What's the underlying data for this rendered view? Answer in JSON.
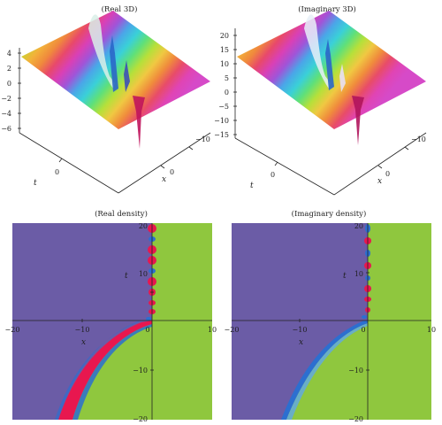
{
  "panels": {
    "real3d": {
      "title": "(Real 3D)",
      "z_ticks": [
        "4",
        "2",
        "0",
        "−2",
        "−4",
        "−6"
      ],
      "t_label": "t",
      "x_label": "x",
      "t_ticks": [
        "0"
      ],
      "x_ticks": [
        "0",
        "−10"
      ]
    },
    "imag3d": {
      "title": "(Imaginary 3D)",
      "z_ticks": [
        "20",
        "15",
        "10",
        "5",
        "0",
        "−5",
        "−10",
        "−15"
      ],
      "t_label": "t",
      "x_label": "x",
      "t_ticks": [
        "0"
      ],
      "x_ticks": [
        "0",
        "−10"
      ]
    },
    "realdens": {
      "title": "(Real density)",
      "x_label": "x",
      "t_label": "t",
      "x_ticks": [
        "−20",
        "−10",
        "0",
        "10"
      ],
      "y_ticks": [
        "20",
        "10",
        "−10",
        "−20"
      ]
    },
    "imagdens": {
      "title": "(Imaginary density)",
      "x_label": "x",
      "t_label": "t",
      "x_ticks": [
        "−20",
        "−10",
        "0",
        "10"
      ],
      "y_ticks": [
        "20",
        "10",
        "−10",
        "−20"
      ]
    }
  },
  "colors": {
    "density_left": "#6b5ca6",
    "density_right": "#8fc73e",
    "front_red": "#e8174f",
    "front_blue": "#2c6fd0",
    "rainbow": [
      "#c8d430",
      "#f2b23a",
      "#f08a3c",
      "#e8496a",
      "#d940b6",
      "#a054d8",
      "#4aa6e8",
      "#3ad0d8",
      "#5ee07a",
      "#b6e03a",
      "#f0c842",
      "#f08c3c",
      "#e84c68",
      "#e044b4",
      "#d64ac8"
    ]
  }
}
